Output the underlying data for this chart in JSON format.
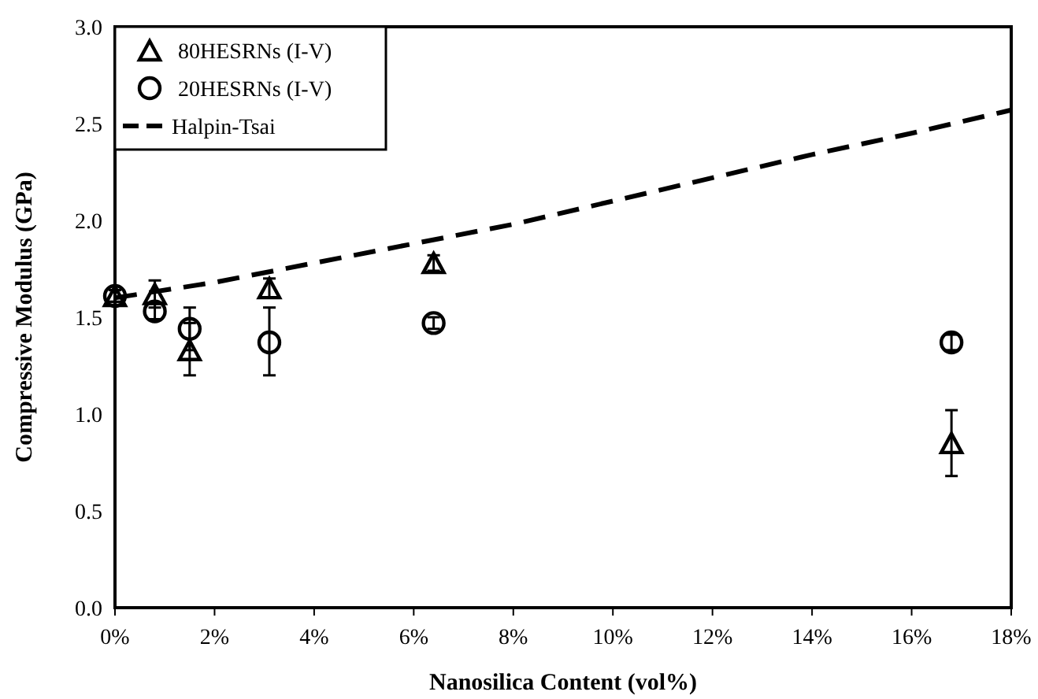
{
  "chart_data": {
    "type": "scatter",
    "xlabel": "Nanosilica Content (vol%)",
    "ylabel": "Compressive Modulus (GPa)",
    "xlim": [
      0,
      18
    ],
    "xticks": [
      {
        "value": 0,
        "label": "0%"
      },
      {
        "value": 2,
        "label": "2%"
      },
      {
        "value": 4,
        "label": "4%"
      },
      {
        "value": 6,
        "label": "6%"
      },
      {
        "value": 8,
        "label": "8%"
      },
      {
        "value": 10,
        "label": "10%"
      },
      {
        "value": 12,
        "label": "12%"
      },
      {
        "value": 14,
        "label": "14%"
      },
      {
        "value": 16,
        "label": "16%"
      },
      {
        "value": 18,
        "label": "18%"
      }
    ],
    "ylim": [
      0,
      3
    ],
    "yticks": [
      {
        "value": 0,
        "label": "0.0"
      },
      {
        "value": 0.5,
        "label": "0.5"
      },
      {
        "value": 1,
        "label": "1.0"
      },
      {
        "value": 1.5,
        "label": "1.5"
      },
      {
        "value": 2,
        "label": "2.0"
      },
      {
        "value": 2.5,
        "label": "2.5"
      },
      {
        "value": 3,
        "label": "3.0"
      }
    ],
    "grid": false,
    "legend": "top left",
    "series": [
      {
        "name": "80HESRNs (I-V)",
        "color": "#000000",
        "marker": "triangle",
        "x": [
          0,
          0.8,
          1.5,
          3.1,
          6.4,
          16.8
        ],
        "values": [
          1.61,
          1.62,
          1.33,
          1.65,
          1.78,
          0.85
        ],
        "errors": [
          0.03,
          0.07,
          [
            1.2,
            1.47
          ],
          0.05,
          0.04,
          [
            0.68,
            1.02
          ]
        ]
      },
      {
        "name": "20HESRNs (I-V)",
        "color": "#000000",
        "marker": "circle",
        "x": [
          0,
          0.8,
          1.5,
          3.1,
          6.4,
          16.8
        ],
        "values": [
          1.61,
          1.53,
          1.44,
          1.37,
          1.47,
          1.37
        ],
        "errors": [
          0.03,
          0.04,
          [
            1.33,
            1.55
          ],
          [
            1.2,
            1.55
          ],
          0.03,
          0.04
        ]
      },
      {
        "name": "Halpin-Tsai",
        "type": "line",
        "color": "#000000",
        "marker": "none",
        "line_style": "dashed",
        "x": [
          0,
          2,
          4,
          6,
          8,
          10,
          12,
          14,
          16,
          18
        ],
        "values": [
          1.6,
          1.68,
          1.78,
          1.88,
          1.98,
          2.1,
          2.22,
          2.34,
          2.45,
          2.57
        ]
      }
    ]
  }
}
